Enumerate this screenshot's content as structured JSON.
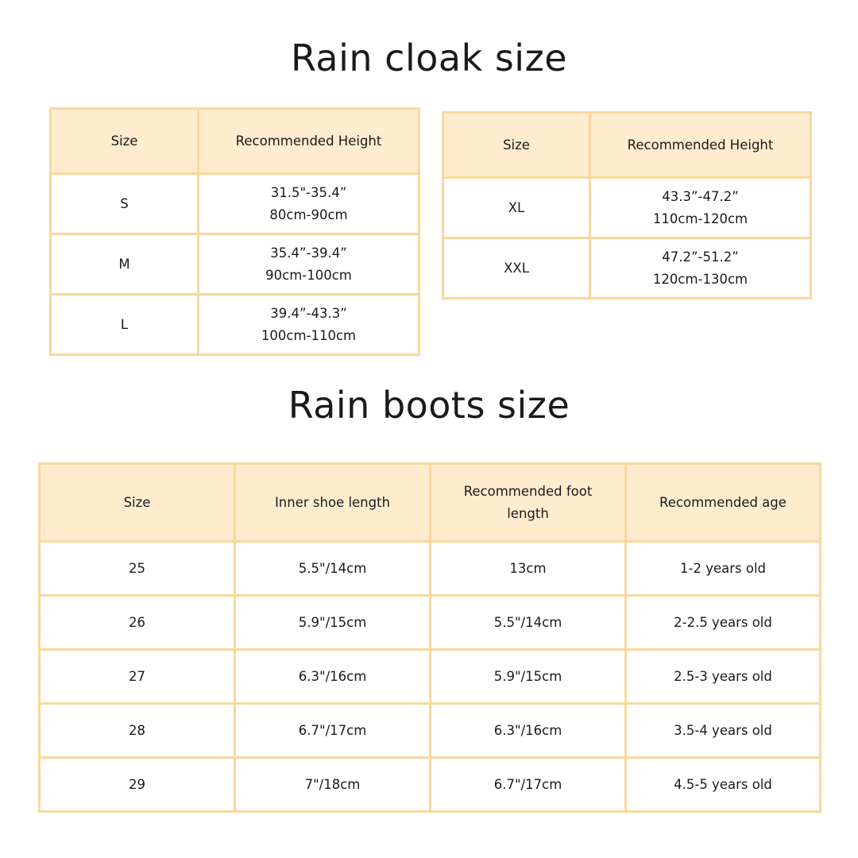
{
  "colors": {
    "header_bg": "#FFECCF",
    "border": "#F8D89C",
    "text": "#1a1a1a"
  },
  "cloak": {
    "title": "Rain cloak size",
    "headers": [
      "Size",
      "Recommended Height"
    ],
    "table_left": [
      {
        "size": "S",
        "inch": "31.5\"-35.4”",
        "cm": "80cm-90cm"
      },
      {
        "size": "M",
        "inch": "35.4”-39.4”",
        "cm": "90cm-100cm"
      },
      {
        "size": "L",
        "inch": "39.4”-43.3”",
        "cm": "100cm-110cm"
      }
    ],
    "table_right": [
      {
        "size": "XL",
        "inch": "43.3”-47.2”",
        "cm": "110cm-120cm"
      },
      {
        "size": "XXL",
        "inch": "47.2”-51.2”",
        "cm": "120cm-130cm"
      }
    ]
  },
  "boots": {
    "title": "Rain boots size",
    "headers": [
      "Size",
      "Inner shoe length",
      "Recommended foot length",
      "Recommended age"
    ],
    "rows": [
      [
        "25",
        "5.5\"/14cm",
        "13cm",
        "1-2 years old"
      ],
      [
        "26",
        "5.9\"/15cm",
        "5.5\"/14cm",
        "2-2.5 years old"
      ],
      [
        "27",
        "6.3\"/16cm",
        "5.9\"/15cm",
        "2.5-3 years old"
      ],
      [
        "28",
        "6.7\"/17cm",
        "6.3\"/16cm",
        "3.5-4 years old"
      ],
      [
        "29",
        "7\"/18cm",
        "6.7\"/17cm",
        "4.5-5 years old"
      ]
    ]
  }
}
